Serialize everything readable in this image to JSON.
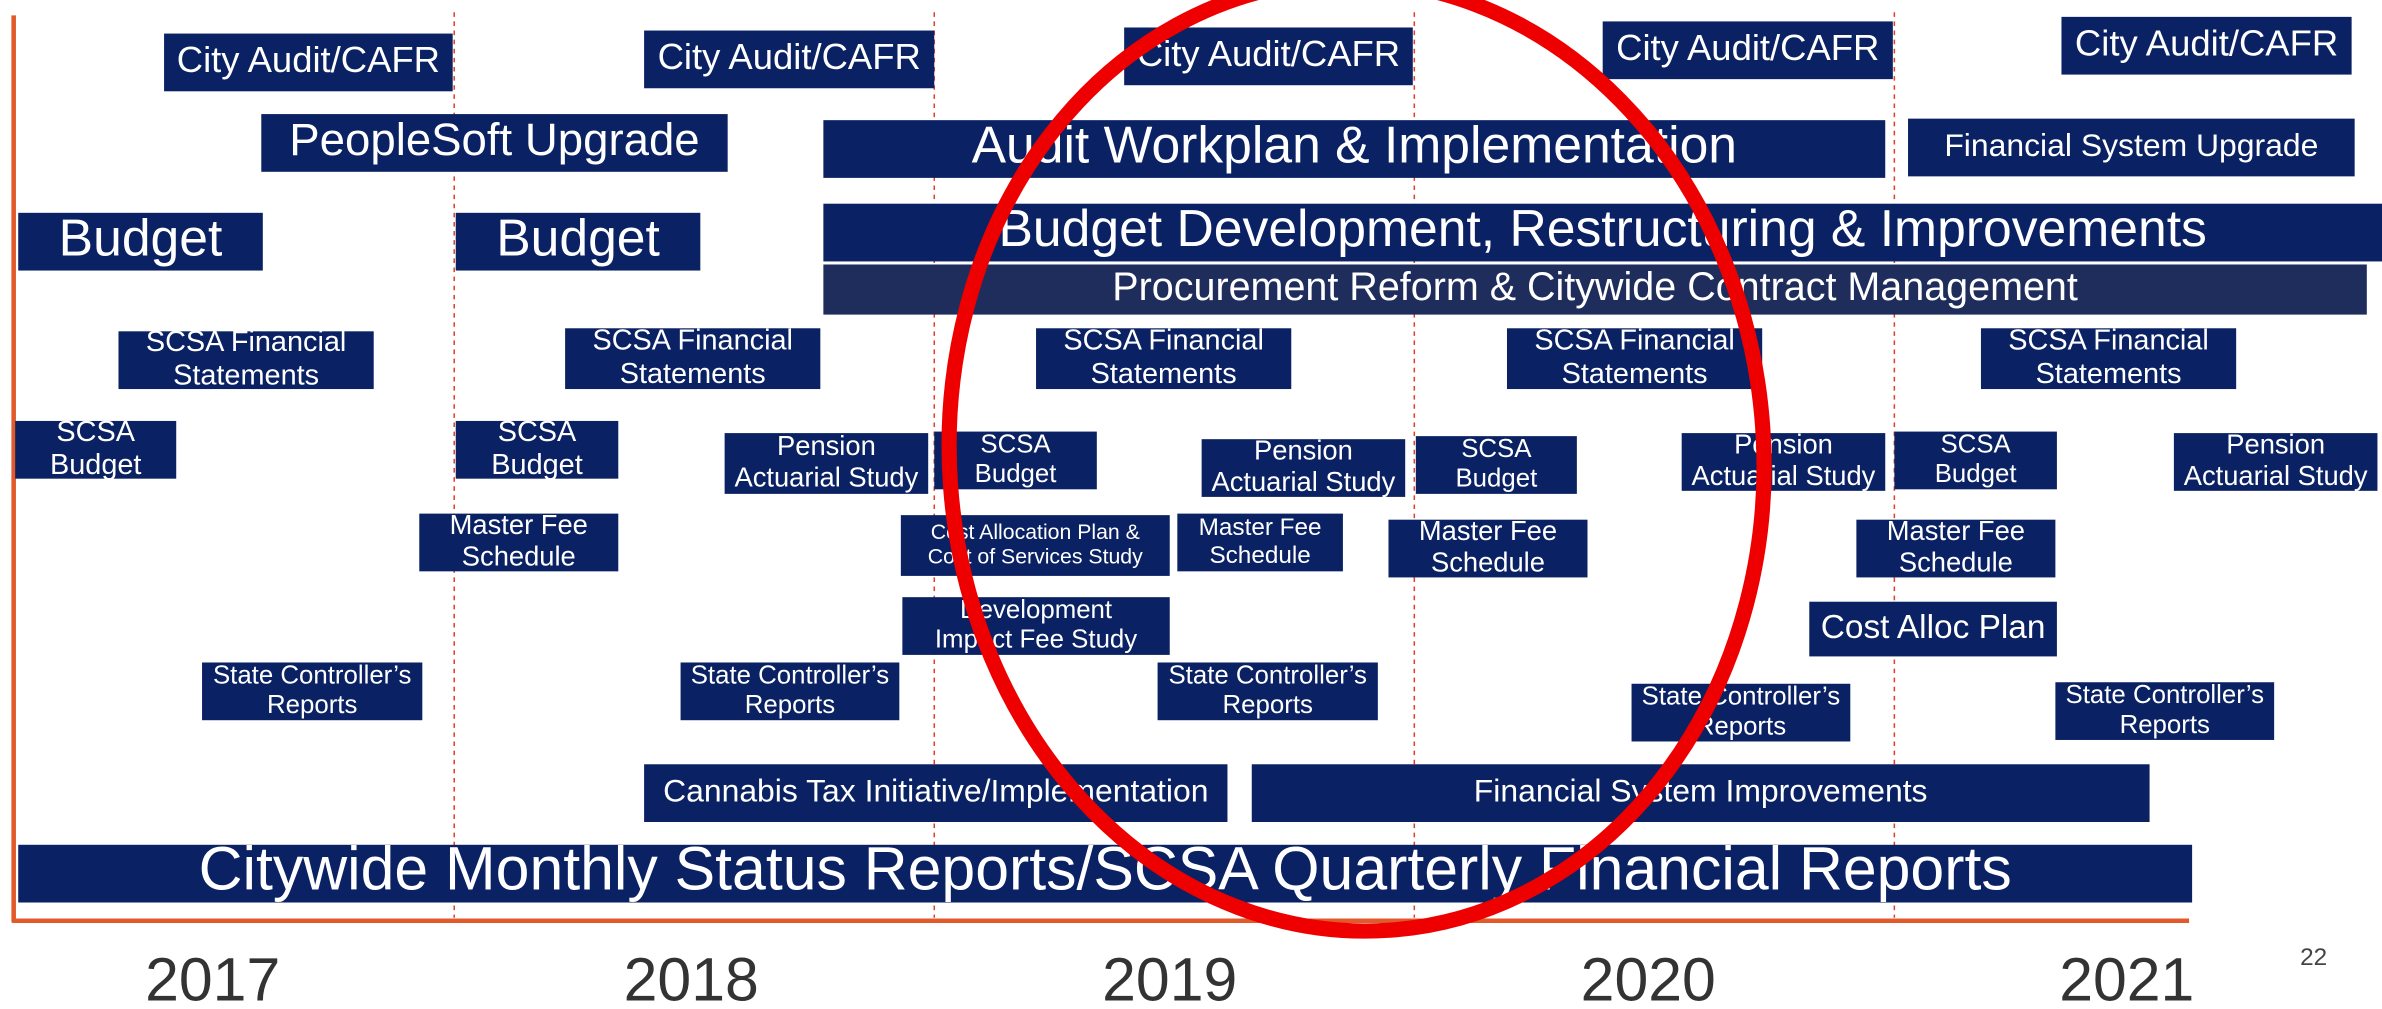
{
  "timeline": {
    "items": [
      {
        "lines": [
          "City Audit/CAFR"
        ]
      },
      {
        "lines": [
          "City Audit/CAFR"
        ]
      },
      {
        "lines": [
          "City Audit/CAFR"
        ]
      },
      {
        "lines": [
          "City Audit/CAFR"
        ]
      },
      {
        "lines": [
          "City Audit/CAFR"
        ]
      },
      {
        "lines": [
          "PeopleSoft Upgrade"
        ]
      },
      {
        "lines": [
          "Audit Workplan & Implementation"
        ]
      },
      {
        "lines": [
          "Financial System Upgrade"
        ]
      },
      {
        "lines": [
          "Budget"
        ]
      },
      {
        "lines": [
          "Budget"
        ]
      },
      {
        "lines": [
          "Budget Development, Restructuring & Improvements"
        ]
      },
      {
        "lines": [
          "Procurement Reform & Citywide Contract Management"
        ]
      },
      {
        "lines": [
          "SCSA Financial",
          "Statements"
        ]
      },
      {
        "lines": [
          "SCSA Financial",
          "Statements"
        ]
      },
      {
        "lines": [
          "SCSA Financial",
          "Statements"
        ]
      },
      {
        "lines": [
          "SCSA Financial",
          "Statements"
        ]
      },
      {
        "lines": [
          "SCSA Financial",
          "Statements"
        ]
      },
      {
        "lines": [
          "SCSA",
          "Budget"
        ]
      },
      {
        "lines": [
          "SCSA",
          "Budget"
        ]
      },
      {
        "lines": [
          "SCSA",
          "Budget"
        ]
      },
      {
        "lines": [
          "SCSA",
          "Budget"
        ]
      },
      {
        "lines": [
          "SCSA",
          "Budget"
        ]
      },
      {
        "lines": [
          "Pension",
          "Actuarial Study"
        ]
      },
      {
        "lines": [
          "Pension",
          "Actuarial Study"
        ]
      },
      {
        "lines": [
          "Pension",
          "Actuarial Study"
        ]
      },
      {
        "lines": [
          "Pension",
          "Actuarial Study"
        ]
      },
      {
        "lines": [
          "Master Fee",
          "Schedule"
        ]
      },
      {
        "lines": [
          "Master Fee",
          "Schedule"
        ]
      },
      {
        "lines": [
          "Master Fee",
          "Schedule"
        ]
      },
      {
        "lines": [
          "Master Fee",
          "Schedule"
        ]
      },
      {
        "lines": [
          "Cost Allocation Plan &",
          "Cost of Services Study"
        ]
      },
      {
        "lines": [
          "Development",
          "Impact Fee Study"
        ]
      },
      {
        "lines": [
          "Cost Alloc Plan"
        ]
      },
      {
        "lines": [
          "State Controller’s",
          "Reports"
        ]
      },
      {
        "lines": [
          "State Controller’s",
          "Reports"
        ]
      },
      {
        "lines": [
          "State Controller’s",
          "Reports"
        ]
      },
      {
        "lines": [
          "State Controller’s",
          "Reports"
        ]
      },
      {
        "lines": [
          "State Controller’s",
          "Reports"
        ]
      },
      {
        "lines": [
          "Cannabis Tax Initiative/Implementation"
        ]
      },
      {
        "lines": [
          "Financial System Improvements"
        ]
      },
      {
        "lines": [
          "Citywide Monthly Status Reports/SCSA Quarterly Financial Reports"
        ]
      }
    ],
    "years": [
      "2017",
      "2018",
      "2019",
      "2020",
      "2021"
    ],
    "page_number": "22"
  }
}
